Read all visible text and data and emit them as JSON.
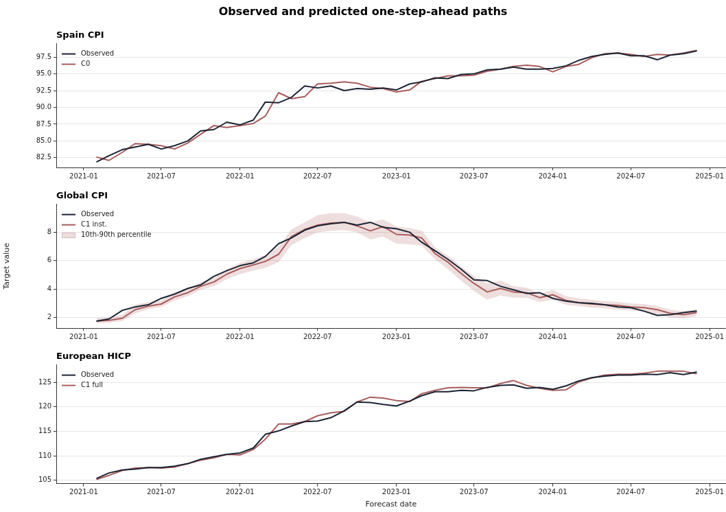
{
  "chart_data": [
    {
      "type": "line",
      "title": "Observed and predicted one-step-ahead paths",
      "subtitle": "Spain CPI",
      "x": [
        "2021-02",
        "2021-03",
        "2021-04",
        "2021-05",
        "2021-06",
        "2021-07",
        "2021-08",
        "2021-09",
        "2021-10",
        "2021-11",
        "2021-12",
        "2022-01",
        "2022-02",
        "2022-03",
        "2022-04",
        "2022-05",
        "2022-06",
        "2022-07",
        "2022-08",
        "2022-09",
        "2022-10",
        "2022-11",
        "2022-12",
        "2023-01",
        "2023-02",
        "2023-03",
        "2023-04",
        "2023-05",
        "2023-06",
        "2023-07",
        "2023-08",
        "2023-09",
        "2023-10",
        "2023-11",
        "2023-12",
        "2024-01",
        "2024-02",
        "2024-03",
        "2024-04",
        "2024-05",
        "2024-06",
        "2024-07",
        "2024-08",
        "2024-09",
        "2024-10",
        "2024-11",
        "2024-12"
      ],
      "series": [
        {
          "name": "Observed",
          "color": "#1b2333",
          "values": [
            81.9,
            82.8,
            83.7,
            84.1,
            84.5,
            83.8,
            84.3,
            85.0,
            86.5,
            86.7,
            87.8,
            87.4,
            88.1,
            90.8,
            90.7,
            91.5,
            93.2,
            92.9,
            93.2,
            92.5,
            92.8,
            92.7,
            92.9,
            92.6,
            93.5,
            93.8,
            94.4,
            94.3,
            94.9,
            95.0,
            95.6,
            95.7,
            96.0,
            95.7,
            95.7,
            95.8,
            96.2,
            97.0,
            97.6,
            97.9,
            98.1,
            97.7,
            97.7,
            97.1,
            97.8,
            98.0,
            98.4
          ]
        },
        {
          "name": "C0",
          "color": "#a85c5c",
          "values": [
            82.6,
            82.1,
            83.3,
            84.6,
            84.5,
            84.3,
            83.8,
            84.7,
            86.0,
            87.3,
            87.0,
            87.3,
            87.6,
            88.7,
            92.2,
            91.3,
            91.6,
            93.5,
            93.6,
            93.8,
            93.6,
            93.0,
            92.8,
            92.3,
            92.6,
            93.9,
            94.3,
            94.7,
            94.7,
            94.8,
            95.4,
            95.7,
            96.1,
            96.3,
            96.1,
            95.3,
            96.1,
            96.4,
            97.4,
            98.0,
            98.1,
            97.9,
            97.6,
            97.9,
            97.8,
            98.1,
            98.5
          ]
        }
      ],
      "xlim": [
        "2020-10-29",
        "2025-02-08"
      ],
      "xticks": [
        "2021-01",
        "2021-07",
        "2022-01",
        "2022-07",
        "2023-01",
        "2023-07",
        "2024-01",
        "2024-07",
        "2025-01"
      ],
      "ylim": [
        81.05,
        99.5
      ],
      "yticks": [
        {
          "value": 82.5,
          "label": "82.5"
        },
        {
          "value": 85,
          "label": "85.0"
        },
        {
          "value": 87.5,
          "label": "87.5"
        },
        {
          "value": 90,
          "label": "90.0"
        },
        {
          "value": 92.5,
          "label": "92.5"
        },
        {
          "value": 95,
          "label": "95.0"
        },
        {
          "value": 97.5,
          "label": "97.5"
        }
      ],
      "grid": "y",
      "legend": "top left",
      "marker": "none",
      "line_style": "solid"
    },
    {
      "type": "line",
      "title": "Global CPI",
      "ylabel": "Target value",
      "x": [
        "2021-02",
        "2021-03",
        "2021-04",
        "2021-05",
        "2021-06",
        "2021-07",
        "2021-08",
        "2021-09",
        "2021-10",
        "2021-11",
        "2021-12",
        "2022-01",
        "2022-02",
        "2022-03",
        "2022-04",
        "2022-05",
        "2022-06",
        "2022-07",
        "2022-08",
        "2022-09",
        "2022-10",
        "2022-11",
        "2022-12",
        "2023-01",
        "2023-02",
        "2023-03",
        "2023-04",
        "2023-05",
        "2023-06",
        "2023-07",
        "2023-08",
        "2023-09",
        "2023-10",
        "2023-11",
        "2023-12",
        "2024-01",
        "2024-02",
        "2024-03",
        "2024-04",
        "2024-05",
        "2024-06",
        "2024-07",
        "2024-08",
        "2024-09",
        "2024-10",
        "2024-11",
        "2024-12"
      ],
      "series": [
        {
          "name": "Observed",
          "color": "#1b2333",
          "values": [
            1.75,
            1.9,
            2.5,
            2.75,
            2.9,
            3.35,
            3.65,
            4.05,
            4.3,
            4.9,
            5.3,
            5.65,
            5.85,
            6.3,
            7.2,
            7.6,
            8.15,
            8.45,
            8.6,
            8.7,
            8.5,
            8.7,
            8.35,
            8.25,
            8.0,
            7.3,
            6.7,
            6.1,
            5.4,
            4.65,
            4.6,
            4.2,
            3.95,
            3.7,
            3.75,
            3.35,
            3.15,
            3.05,
            3.0,
            2.9,
            2.75,
            2.7,
            2.45,
            2.15,
            2.2,
            2.35,
            2.45
          ]
        },
        {
          "name": "C1 inst.",
          "color": "#a85c5c",
          "values": [
            1.75,
            1.8,
            1.95,
            2.55,
            2.8,
            2.95,
            3.45,
            3.75,
            4.2,
            4.5,
            5.05,
            5.45,
            5.7,
            5.95,
            6.45,
            7.7,
            8.2,
            8.5,
            8.65,
            8.7,
            8.45,
            8.1,
            8.4,
            7.85,
            7.8,
            7.6,
            6.5,
            5.9,
            5.1,
            4.4,
            3.8,
            4.05,
            3.8,
            3.75,
            3.4,
            3.6,
            3.2,
            3.05,
            2.95,
            2.9,
            2.85,
            2.75,
            2.7,
            2.55,
            2.3,
            2.2,
            2.35
          ],
          "lower": [
            1.6,
            1.65,
            1.75,
            2.3,
            2.6,
            2.75,
            3.2,
            3.5,
            3.95,
            4.2,
            4.7,
            5.05,
            5.3,
            5.5,
            5.9,
            7.1,
            7.6,
            8.0,
            8.1,
            8.15,
            8.0,
            7.5,
            7.7,
            7.2,
            7.15,
            7.05,
            6.1,
            5.4,
            4.6,
            3.85,
            3.25,
            3.55,
            3.4,
            3.4,
            3.1,
            3.25,
            2.9,
            2.8,
            2.7,
            2.65,
            2.55,
            2.5,
            2.4,
            2.25,
            2.0,
            1.95,
            2.1
          ],
          "upper": [
            2.0,
            2.0,
            2.2,
            2.9,
            3.1,
            3.2,
            3.75,
            4.05,
            4.5,
            4.8,
            5.4,
            5.85,
            6.1,
            6.4,
            7.0,
            8.2,
            8.7,
            9.2,
            9.35,
            9.35,
            9.1,
            8.7,
            8.9,
            8.4,
            8.3,
            8.1,
            6.95,
            6.35,
            5.6,
            4.9,
            4.4,
            4.6,
            4.2,
            4.1,
            3.7,
            3.95,
            3.5,
            3.35,
            3.25,
            3.15,
            3.1,
            3.0,
            2.95,
            2.8,
            2.55,
            2.45,
            2.6
          ]
        }
      ],
      "annotations": [
        "10th-90th percentile"
      ],
      "xlim": [
        "2020-10-29",
        "2025-02-08"
      ],
      "xticks": [
        "2021-01",
        "2021-07",
        "2022-01",
        "2022-07",
        "2023-01",
        "2023-07",
        "2024-01",
        "2024-07",
        "2025-01"
      ],
      "ylim": [
        1.26,
        9.97
      ],
      "yticks": [
        2,
        4,
        6,
        8
      ],
      "grid": "y",
      "legend": "top left",
      "marker": "none",
      "line_style": "solid"
    },
    {
      "type": "line",
      "title": "European HICP",
      "xlabel": "Forecast date",
      "x": [
        "2021-02",
        "2021-03",
        "2021-04",
        "2021-05",
        "2021-06",
        "2021-07",
        "2021-08",
        "2021-09",
        "2021-10",
        "2021-11",
        "2021-12",
        "2022-01",
        "2022-02",
        "2022-03",
        "2022-04",
        "2022-05",
        "2022-06",
        "2022-07",
        "2022-08",
        "2022-09",
        "2022-10",
        "2022-11",
        "2022-12",
        "2023-01",
        "2023-02",
        "2023-03",
        "2023-04",
        "2023-05",
        "2023-06",
        "2023-07",
        "2023-08",
        "2023-09",
        "2023-10",
        "2023-11",
        "2023-12",
        "2024-01",
        "2024-02",
        "2024-03",
        "2024-04",
        "2024-05",
        "2024-06",
        "2024-07",
        "2024-08",
        "2024-09",
        "2024-10",
        "2024-11",
        "2024-12"
      ],
      "series": [
        {
          "name": "Observed",
          "color": "#1b2333",
          "values": [
            105.4,
            106.5,
            107.1,
            107.3,
            107.6,
            107.6,
            107.9,
            108.4,
            109.3,
            109.8,
            110.3,
            110.6,
            111.6,
            114.4,
            115.1,
            116.1,
            117.0,
            117.1,
            117.8,
            119.2,
            121.0,
            120.9,
            120.5,
            120.2,
            121.2,
            122.3,
            123.1,
            123.1,
            123.4,
            123.3,
            124.0,
            124.4,
            124.5,
            123.8,
            124.0,
            123.6,
            124.3,
            125.3,
            126.0,
            126.3,
            126.5,
            126.5,
            126.7,
            126.6,
            127.0,
            126.6,
            127.1
          ]
        },
        {
          "name": "C1 full",
          "color": "#a85c5c",
          "values": [
            105.2,
            106.0,
            107.0,
            107.5,
            107.6,
            107.5,
            107.7,
            108.4,
            109.1,
            109.6,
            110.3,
            110.2,
            111.3,
            113.4,
            116.5,
            116.5,
            117.0,
            118.2,
            118.8,
            119.1,
            121.0,
            122.0,
            121.8,
            121.3,
            121.1,
            122.7,
            123.4,
            123.9,
            124.0,
            123.9,
            123.9,
            124.8,
            125.4,
            124.4,
            123.8,
            123.4,
            123.5,
            125.1,
            125.9,
            126.5,
            126.7,
            126.7,
            126.9,
            127.3,
            127.3,
            127.3,
            126.8
          ]
        }
      ],
      "xlim": [
        "2020-10-29",
        "2025-02-08"
      ],
      "xticks": [
        "2021-01",
        "2021-07",
        "2022-01",
        "2022-07",
        "2023-01",
        "2023-07",
        "2024-01",
        "2024-07",
        "2025-01"
      ],
      "ylim": [
        104.3,
        128.6
      ],
      "yticks": [
        105,
        110,
        115,
        120,
        125
      ],
      "grid": "y",
      "legend": "top left",
      "marker": "none",
      "line_style": "solid"
    }
  ]
}
